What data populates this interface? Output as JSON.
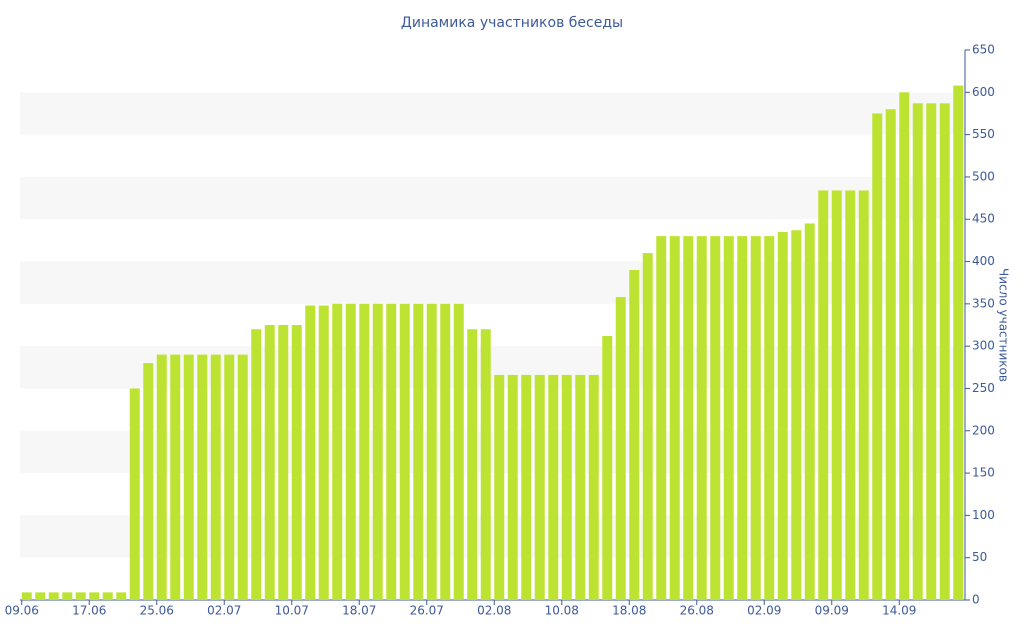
{
  "chart_data": {
    "type": "bar",
    "title": "Динамика участников беседы",
    "y_label": "Число участников",
    "categories": [
      "09.06",
      null,
      null,
      null,
      null,
      "17.06",
      null,
      null,
      null,
      null,
      "25.06",
      null,
      null,
      null,
      null,
      "02.07",
      null,
      null,
      null,
      null,
      "10.07",
      null,
      null,
      null,
      null,
      "18.07",
      null,
      null,
      null,
      null,
      "26.07",
      null,
      null,
      null,
      null,
      "02.08",
      null,
      null,
      null,
      null,
      "10.08",
      null,
      null,
      null,
      null,
      "18.08",
      null,
      null,
      null,
      null,
      "26.08",
      null,
      null,
      null,
      null,
      "02.09",
      null,
      null,
      null,
      null,
      "09.09",
      null,
      null,
      null,
      null,
      "14.09",
      null,
      null,
      null,
      null
    ],
    "values": [
      9,
      9,
      9,
      9,
      9,
      9,
      9,
      9,
      250,
      280,
      290,
      290,
      290,
      290,
      290,
      290,
      290,
      320,
      325,
      325,
      325,
      348,
      348,
      350,
      350,
      350,
      350,
      350,
      350,
      350,
      350,
      350,
      350,
      320,
      320,
      266,
      266,
      266,
      266,
      266,
      266,
      266,
      266,
      312,
      358,
      390,
      410,
      430,
      430,
      430,
      430,
      430,
      430,
      430,
      430,
      430,
      435,
      437,
      445,
      484,
      484,
      484,
      484,
      575,
      580,
      600,
      587,
      587,
      587,
      608
    ],
    "color": "#bde332",
    "ylim": [
      0,
      650
    ],
    "yticks": [
      0,
      50,
      100,
      150,
      200,
      250,
      300,
      350,
      400,
      450,
      500,
      550,
      600,
      650
    ],
    "grid": "bands",
    "y_axis_side": "right"
  }
}
